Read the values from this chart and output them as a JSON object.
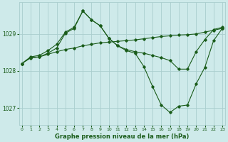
{
  "title": "Graphe pression niveau de la mer (hPa)",
  "bg_color": "#ceeaea",
  "grid_color": "#aacece",
  "line_color": "#1a5c1a",
  "xlim": [
    -0.3,
    23.3
  ],
  "ylim": [
    1026.55,
    1029.85
  ],
  "yticks": [
    1027,
    1028,
    1029
  ],
  "xticks": [
    0,
    1,
    2,
    3,
    4,
    5,
    6,
    7,
    8,
    9,
    10,
    11,
    12,
    13,
    14,
    15,
    16,
    17,
    18,
    19,
    20,
    21,
    22,
    23
  ],
  "line1_x": [
    0,
    1,
    2,
    3,
    4,
    5,
    6,
    7,
    8,
    9,
    10,
    11,
    12,
    13,
    14,
    15,
    16,
    17,
    18,
    19,
    20,
    21,
    22,
    23
  ],
  "line1_y": [
    1028.2,
    1028.35,
    1028.38,
    1028.45,
    1028.52,
    1028.58,
    1028.62,
    1028.68,
    1028.72,
    1028.76,
    1028.78,
    1028.8,
    1028.82,
    1028.84,
    1028.87,
    1028.9,
    1028.93,
    1028.95,
    1028.97,
    1028.98,
    1029.0,
    1029.05,
    1029.1,
    1029.15
  ],
  "line2_x": [
    0,
    1,
    2,
    3,
    4,
    5,
    6,
    7,
    8,
    9,
    10,
    11,
    12,
    13,
    14,
    15,
    16,
    17,
    18,
    19,
    20,
    21,
    22,
    23
  ],
  "line2_y": [
    1028.2,
    1028.38,
    1028.42,
    1028.55,
    1028.72,
    1029.05,
    1029.18,
    1029.62,
    1029.38,
    1029.22,
    1028.88,
    1028.68,
    1028.58,
    1028.52,
    1028.48,
    1028.42,
    1028.36,
    1028.28,
    1028.05,
    1028.05,
    1028.52,
    1028.85,
    1029.12,
    1029.18
  ],
  "line3_x": [
    0,
    1,
    2,
    3,
    4,
    5,
    6,
    7,
    8,
    9,
    10,
    11,
    12,
    13,
    14,
    15,
    16,
    17,
    18,
    19,
    20,
    21,
    22,
    23
  ],
  "line3_y": [
    1028.2,
    1028.36,
    1028.38,
    1028.48,
    1028.62,
    1029.02,
    1029.15,
    1029.62,
    1029.38,
    1029.22,
    1028.88,
    1028.68,
    1028.55,
    1028.48,
    1028.12,
    1027.58,
    1027.08,
    1026.88,
    1027.05,
    1027.08,
    1027.65,
    1028.1,
    1028.82,
    1029.15
  ],
  "line4_x": [
    0,
    23
  ],
  "line4_y": [
    1028.2,
    1029.15
  ]
}
